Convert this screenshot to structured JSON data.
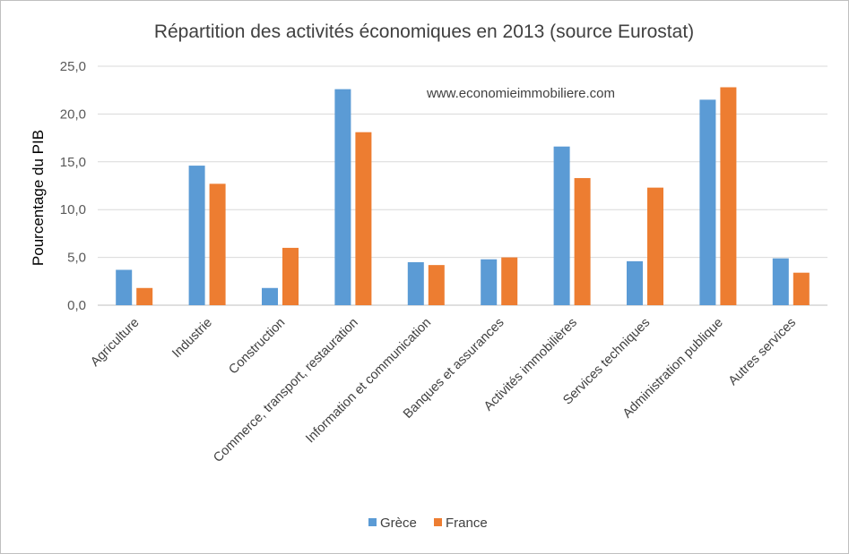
{
  "chart_data": {
    "type": "bar",
    "title": "Répartition des activités économiques en 2013 (source Eurostat)",
    "xlabel": "",
    "ylabel": "Pourcentage du PIB",
    "annotation": "www.economieimmobiliere.com",
    "ylim": [
      0,
      25
    ],
    "yticks": [
      "0,0",
      "5,0",
      "10,0",
      "15,0",
      "20,0",
      "25,0"
    ],
    "grid": true,
    "legend_position": "bottom",
    "categories": [
      "Agriculture",
      "Industrie",
      "Construction",
      "Commerce, transport, restauration",
      "Information et communication",
      "Banques et assurances",
      "Activités immobilières",
      "Services techniques",
      "Administration publique",
      "Autres  services"
    ],
    "series": [
      {
        "name": "Grèce",
        "color": "#5b9bd5",
        "values": [
          3.7,
          14.6,
          1.8,
          22.6,
          4.5,
          4.8,
          16.6,
          4.6,
          21.5,
          4.9
        ]
      },
      {
        "name": "France",
        "color": "#ed7d31",
        "values": [
          1.8,
          12.7,
          6.0,
          18.1,
          4.2,
          5.0,
          13.3,
          12.3,
          22.8,
          3.4
        ]
      }
    ]
  }
}
